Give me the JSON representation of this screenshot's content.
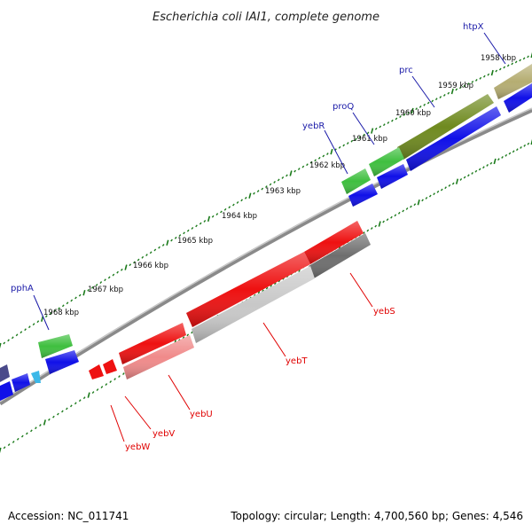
{
  "title": "Escherichia coli IAI1, complete genome",
  "footer": {
    "accession": "Accession: NC_011741",
    "summary": "Topology: circular; Length: 4,700,560 bp; Genes: 4,546"
  },
  "colors": {
    "backbone": "#8a8a8a",
    "tick": "#1a7a1a",
    "label_forward": "#1a1aa8",
    "label_reverse": "#e00000",
    "cds_green": "#3fbf3f",
    "cds_blue": "#1010e8",
    "cds_red": "#ee1111",
    "cds_olive": "#6f8a1f",
    "cds_khaki": "#b5ad72",
    "cds_pink": "#f08a8a",
    "cds_grey_light": "#c8c8c8",
    "cds_grey_dark": "#6e6e6e"
  },
  "kbp_labels": [
    {
      "text": "1958 kbp"
    },
    {
      "text": "1959 kbp"
    },
    {
      "text": "1960 kbp"
    },
    {
      "text": "1961 kbp"
    },
    {
      "text": "1962 kbp"
    },
    {
      "text": "1963 kbp"
    },
    {
      "text": "1964 kbp"
    },
    {
      "text": "1965 kbp"
    },
    {
      "text": "1966 kbp"
    },
    {
      "text": "1967 kbp"
    },
    {
      "text": "1968 kbp"
    }
  ],
  "genes_forward": [
    {
      "name": "htpX"
    },
    {
      "name": "prc"
    },
    {
      "name": "proQ"
    },
    {
      "name": "yebR"
    },
    {
      "name": "pphA"
    }
  ],
  "genes_reverse": [
    {
      "name": "yebS"
    },
    {
      "name": "yebT"
    },
    {
      "name": "yebU"
    },
    {
      "name": "yebV"
    },
    {
      "name": "yebW"
    }
  ]
}
